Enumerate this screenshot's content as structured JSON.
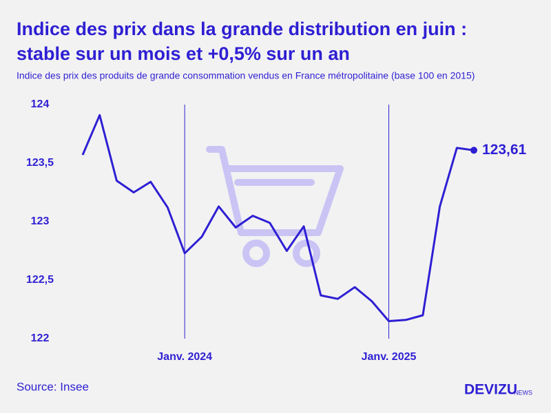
{
  "chart_data": {
    "type": "line",
    "title": [
      "Indice des prix dans la grande distribution en juin :",
      "stable sur un mois et +0,5% sur un an"
    ],
    "subtitle": "Indice des prix des produits de grande consommation vendus en France métropolitaine (base 100 en 2015)",
    "source": "Source: Insee",
    "brand": "DEVIZU",
    "brand_suffix": "NEWS",
    "categories": [
      null,
      null,
      null,
      null,
      null,
      null,
      "Janv. 2024",
      null,
      null,
      null,
      null,
      null,
      null,
      null,
      null,
      null,
      null,
      null,
      "Janv. 2025",
      null,
      null,
      null,
      null,
      null
    ],
    "series": [
      {
        "name": null,
        "color": "#2e1fd3",
        "values": [
          123.57,
          123.91,
          123.35,
          123.25,
          123.34,
          123.12,
          122.73,
          122.87,
          123.13,
          122.95,
          123.05,
          122.99,
          122.75,
          122.96,
          122.37,
          122.34,
          122.44,
          122.32,
          122.15,
          122.16,
          122.2,
          123.13,
          123.63,
          123.61
        ],
        "value_labels": [
          null,
          null,
          null,
          null,
          null,
          null,
          null,
          null,
          null,
          null,
          null,
          null,
          null,
          null,
          null,
          null,
          null,
          null,
          null,
          null,
          null,
          null,
          null,
          "123,61"
        ]
      }
    ],
    "ylim": [
      122,
      124
    ],
    "yticks": [
      122,
      {
        "value": 122.5,
        "label": "122,5"
      },
      123,
      {
        "value": 123.5,
        "label": "123,5"
      },
      124
    ],
    "grid": false
  }
}
